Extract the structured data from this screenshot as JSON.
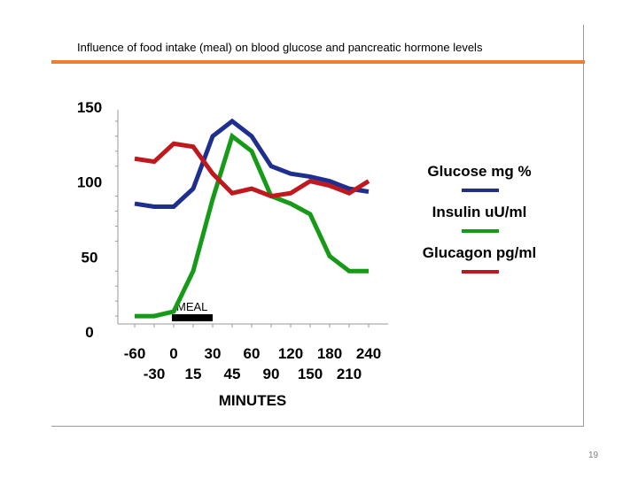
{
  "slide": {
    "title": "Influence of food intake (meal) on blood glucose and pancreatic hormone levels",
    "page_number": "19",
    "accent_color": "#ed7d31"
  },
  "chart_data": {
    "type": "line",
    "title": "Influence of food intake (meal) on blood glucose and pancreatic hormone levels",
    "xlabel": "MINUTES",
    "ylabel": "",
    "ylim": [
      0,
      150
    ],
    "yticks": [
      "150",
      "100",
      "50",
      "0"
    ],
    "x": [
      -60,
      -30,
      0,
      15,
      30,
      45,
      60,
      90,
      120,
      150,
      180,
      210,
      240
    ],
    "xtick_labels_top": [
      "-60",
      "0",
      "30",
      "60",
      "120",
      "180",
      "240"
    ],
    "xtick_labels_bottom": [
      "-30",
      "15",
      "45",
      "90",
      "150",
      "210"
    ],
    "series": [
      {
        "name": "Glucose mg %",
        "color": "#1f2f8f",
        "values": [
          85,
          83,
          83,
          95,
          130,
          140,
          130,
          110,
          105,
          103,
          100,
          95,
          93
        ]
      },
      {
        "name": "Insulin uU/ml",
        "color": "#179a17",
        "values": [
          10,
          10,
          13,
          40,
          88,
          130,
          120,
          90,
          85,
          78,
          50,
          40,
          40
        ]
      },
      {
        "name": "Glucagon pg/ml",
        "color": "#c0181c",
        "values": [
          115,
          113,
          125,
          123,
          105,
          92,
          95,
          90,
          92,
          100,
          97,
          92,
          100
        ]
      }
    ],
    "annotation": {
      "label": "MEAL",
      "start": 0,
      "end": 30
    }
  }
}
